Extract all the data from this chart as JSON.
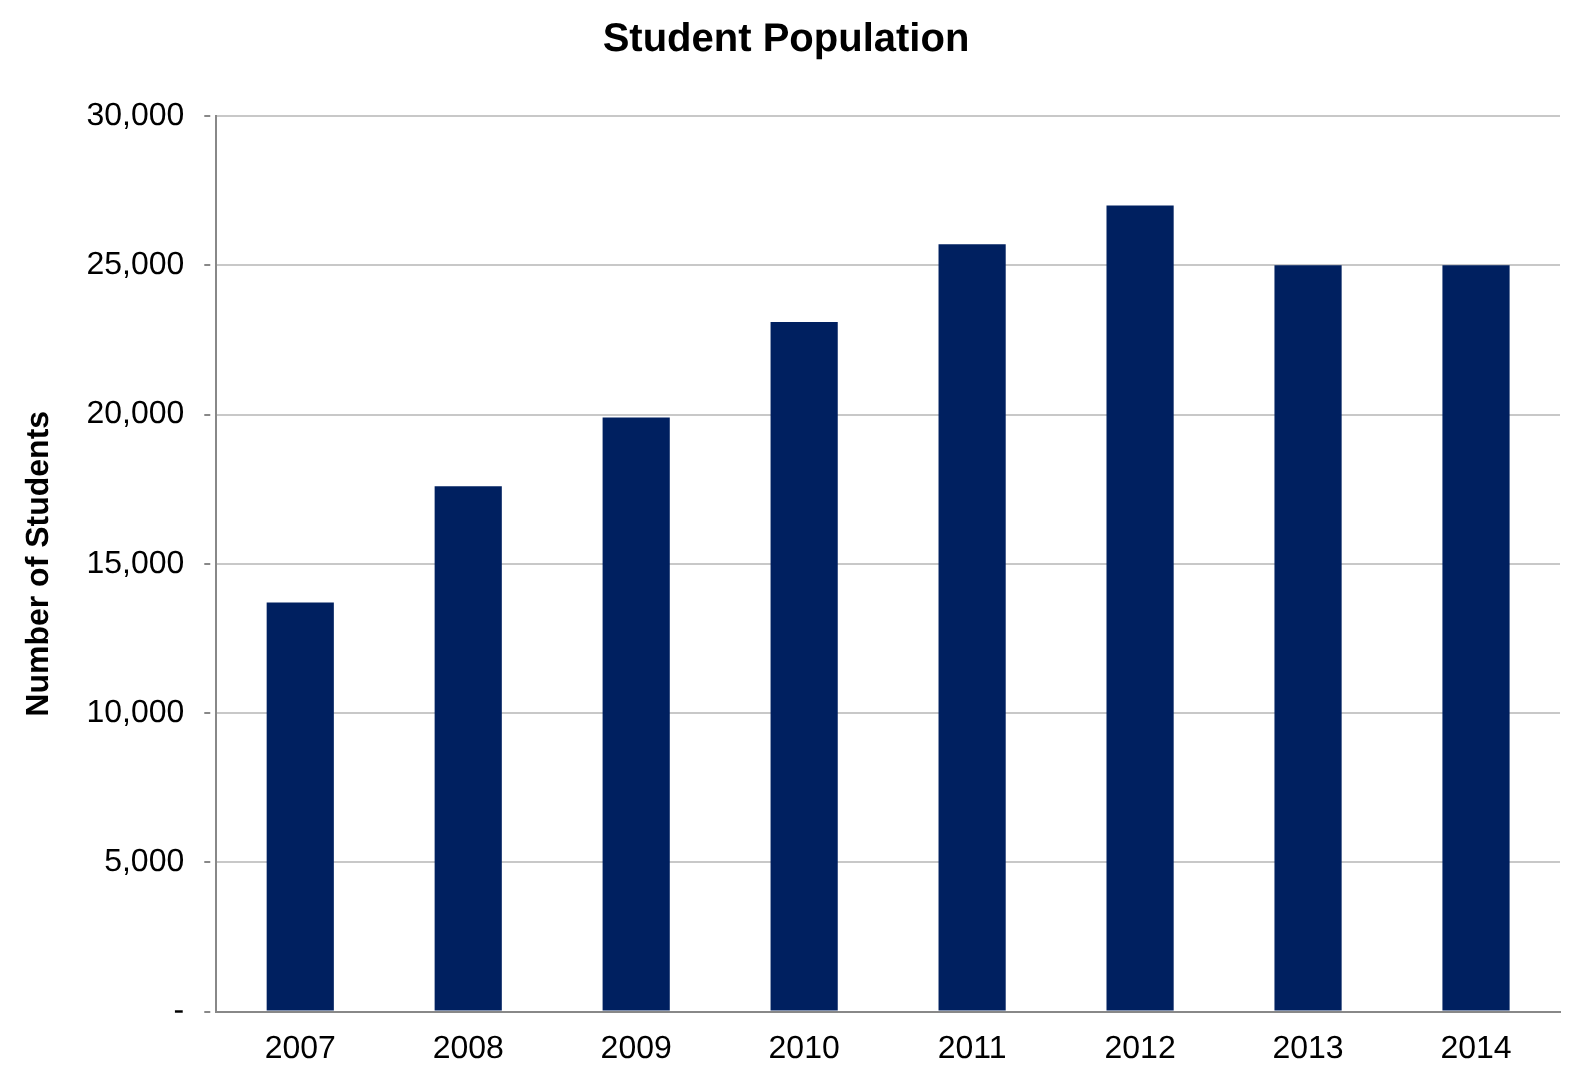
{
  "chart_data": {
    "type": "bar",
    "title": "Student Population",
    "ylabel": "Number of Students",
    "categories": [
      "2007",
      "2008",
      "2009",
      "2010",
      "2011",
      "2012",
      "2013",
      "2014"
    ],
    "values": [
      13700,
      17600,
      19900,
      23100,
      25700,
      27000,
      25000,
      25000
    ],
    "color": "#002060",
    "ylim": [
      0,
      30000
    ],
    "yticks": [
      {
        "value": 0,
        "label": "-"
      },
      {
        "value": 5000,
        "label": "5,000"
      },
      {
        "value": 10000,
        "label": "10,000"
      },
      {
        "value": 15000,
        "label": "15,000"
      },
      {
        "value": 20000,
        "label": "20,000"
      },
      {
        "value": 25000,
        "label": "25,000"
      },
      {
        "value": 30000,
        "label": "30,000"
      }
    ],
    "grid": "y",
    "legend": false
  }
}
